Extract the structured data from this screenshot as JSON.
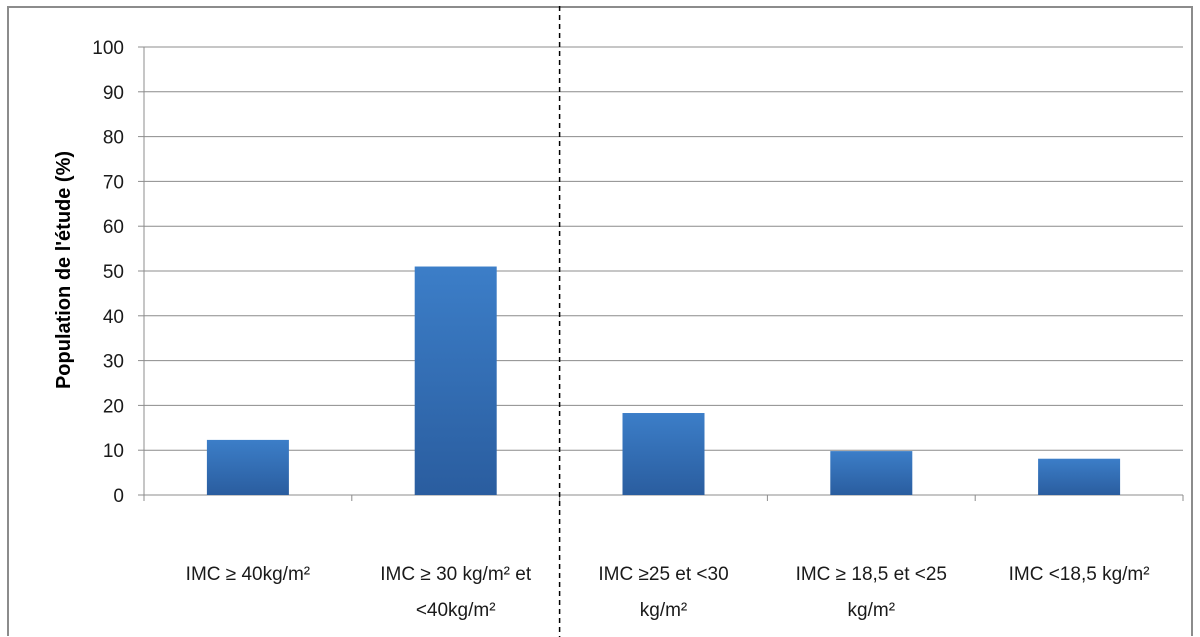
{
  "chart_data": {
    "type": "bar",
    "title": "",
    "xlabel": "",
    "ylabel": "Population de l'étude (%)",
    "ylim": [
      0,
      100
    ],
    "yticks": [
      0,
      10,
      20,
      30,
      40,
      50,
      60,
      70,
      80,
      90,
      100
    ],
    "grid": true,
    "legend": "none",
    "bar_color": "#2f6cb5",
    "categories": [
      [
        "IMC ≥ 40kg/m²"
      ],
      [
        "IMC ≥ 30 kg/m² et",
        "<40kg/m²"
      ],
      [
        "IMC ≥25 et <30",
        "kg/m²"
      ],
      [
        "IMC ≥ 18,5 et <25",
        "kg/m²"
      ],
      [
        "IMC <18,5 kg/m²"
      ]
    ],
    "values": [
      12.3,
      51,
      18.3,
      9.8,
      8.1
    ],
    "annotations": [
      {
        "type": "vertical-dashed-line",
        "between_categories": [
          1,
          2
        ]
      }
    ]
  }
}
